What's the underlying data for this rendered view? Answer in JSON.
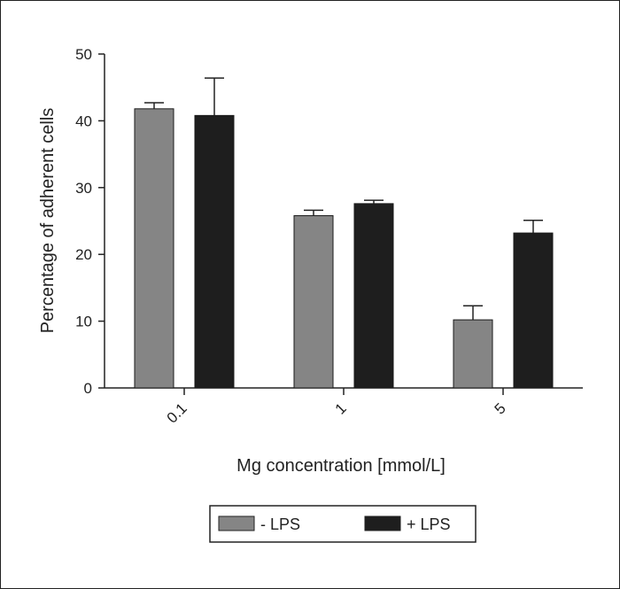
{
  "chart_data": {
    "type": "bar",
    "title": "",
    "xlabel": "Mg concentration [mmol/L]",
    "ylabel": "Percentage of adherent cells",
    "categories": [
      "0.1",
      "1",
      "5"
    ],
    "ylim": [
      0,
      50
    ],
    "yticks": [
      "0",
      "10",
      "20",
      "30",
      "40",
      "50"
    ],
    "grid": false,
    "legend_position": "bottom",
    "series": [
      {
        "name": "- LPS",
        "color": "#858585",
        "values": [
          41.8,
          25.8,
          10.2
        ],
        "errors": [
          0.9,
          0.8,
          2.1
        ]
      },
      {
        "name": "+ LPS",
        "color": "#1e1e1e",
        "values": [
          40.8,
          27.6,
          23.2
        ],
        "errors": [
          5.6,
          0.5,
          1.9
        ]
      }
    ]
  }
}
